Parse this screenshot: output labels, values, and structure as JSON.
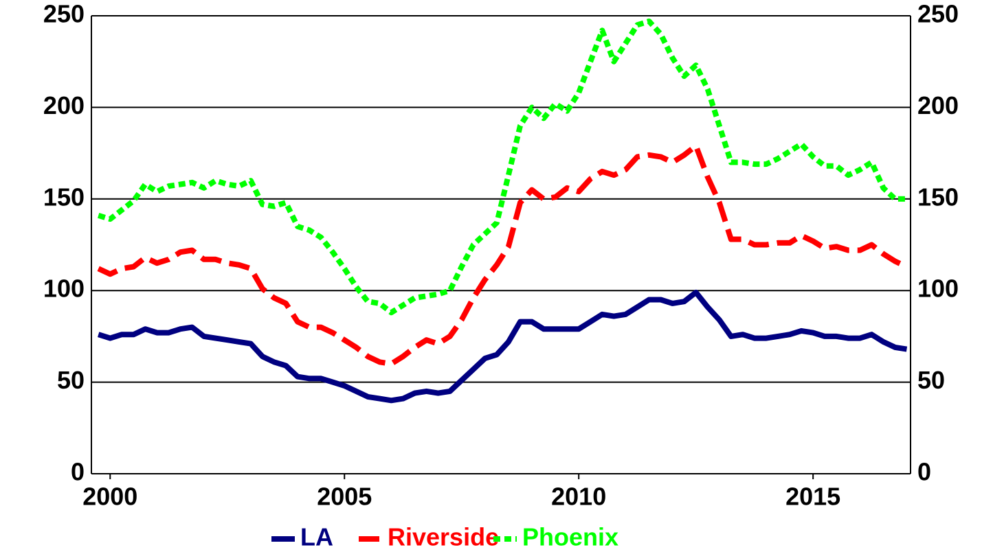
{
  "chart_data": {
    "type": "line",
    "x": [
      1999.75,
      2000,
      2000.25,
      2000.5,
      2000.75,
      2001,
      2001.25,
      2001.5,
      2001.75,
      2002,
      2002.25,
      2002.5,
      2002.75,
      2003,
      2003.25,
      2003.5,
      2003.75,
      2004,
      2004.25,
      2004.5,
      2004.75,
      2005,
      2005.25,
      2005.5,
      2005.75,
      2006,
      2006.25,
      2006.5,
      2006.75,
      2007,
      2007.25,
      2007.5,
      2007.75,
      2008,
      2008.25,
      2008.5,
      2008.75,
      2009,
      2009.25,
      2009.5,
      2009.75,
      2010,
      2010.25,
      2010.5,
      2010.75,
      2011,
      2011.25,
      2011.5,
      2011.75,
      2012,
      2012.25,
      2012.5,
      2012.75,
      2013,
      2013.25,
      2013.5,
      2013.75,
      2014,
      2014.25,
      2014.5,
      2014.75,
      2015,
      2015.25,
      2015.5,
      2015.75,
      2016,
      2016.25,
      2016.5,
      2016.75,
      2017
    ],
    "series": [
      {
        "name": "LA",
        "color": "#000080",
        "values": [
          76,
          74,
          76,
          76,
          79,
          77,
          77,
          79,
          80,
          75,
          74,
          73,
          72,
          71,
          64,
          61,
          59,
          53,
          52,
          52,
          50,
          48,
          45,
          42,
          41,
          40,
          41,
          44,
          45,
          44,
          45,
          51,
          57,
          63,
          65,
          72,
          83,
          83,
          79,
          79,
          79,
          79,
          83,
          87,
          86,
          87,
          91,
          95,
          95,
          93,
          94,
          99,
          91,
          84,
          75,
          76,
          74,
          74,
          75,
          76,
          78,
          77,
          75,
          75,
          74,
          74,
          76,
          72,
          69,
          68
        ]
      },
      {
        "name": "Riverside",
        "color": "#ff0000",
        "values": [
          112,
          109,
          112,
          113,
          118,
          115,
          117,
          121,
          122,
          117,
          117,
          115,
          114,
          112,
          101,
          96,
          93,
          83,
          80,
          80,
          77,
          73,
          69,
          64,
          61,
          60,
          64,
          69,
          73,
          71,
          75,
          84,
          96,
          106,
          114,
          124,
          148,
          155,
          150,
          151,
          156,
          154,
          161,
          165,
          163,
          166,
          173,
          174,
          173,
          170,
          174,
          179,
          162,
          148,
          128,
          128,
          125,
          125,
          126,
          126,
          130,
          127,
          123,
          124,
          122,
          122,
          125,
          120,
          116,
          113
        ]
      },
      {
        "name": "Phoenix",
        "color": "#00ff00",
        "values": [
          141,
          139,
          144,
          149,
          158,
          154,
          157,
          158,
          159,
          156,
          160,
          158,
          157,
          160,
          147,
          146,
          148,
          135,
          133,
          129,
          121,
          112,
          102,
          94,
          93,
          88,
          92,
          96,
          97,
          98,
          100,
          113,
          125,
          131,
          137,
          163,
          190,
          200,
          194,
          202,
          198,
          208,
          225,
          242,
          225,
          235,
          245,
          247,
          240,
          227,
          217,
          223,
          210,
          190,
          170,
          170,
          169,
          169,
          172,
          176,
          180,
          173,
          168,
          168,
          163,
          166,
          170,
          156,
          150,
          150
        ]
      }
    ],
    "xlim": [
      1999.6,
      2017.08
    ],
    "xticks": [
      2000,
      2005,
      2010,
      2015
    ],
    "ylim": [
      0,
      250
    ],
    "yticks": [
      0,
      50,
      100,
      150,
      200,
      250
    ],
    "grid": true,
    "legend": "bottom"
  }
}
